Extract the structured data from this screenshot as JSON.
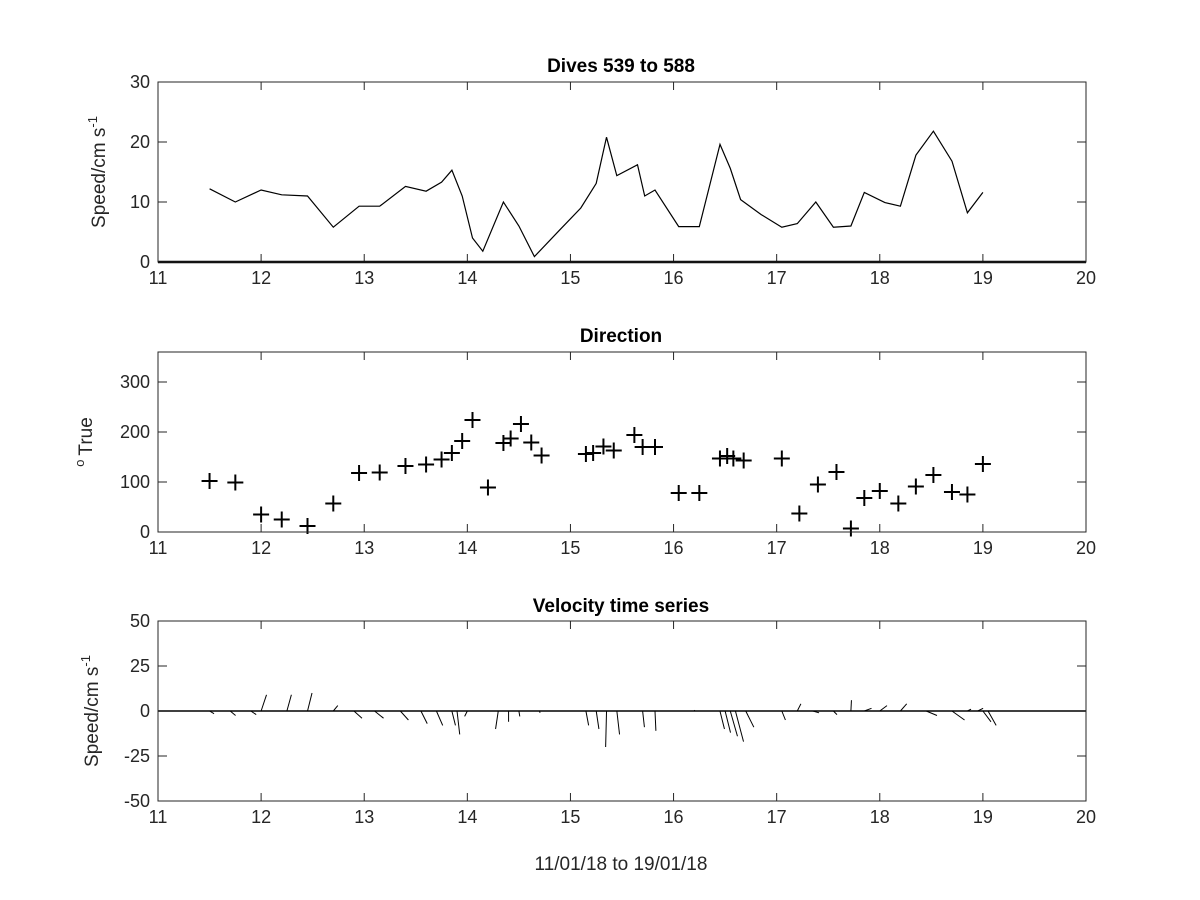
{
  "chart_data": [
    {
      "type": "line",
      "title": "Dives 539 to 588",
      "xlabel": "",
      "ylabel": "Speed/cm s",
      "ylabel_sup": "-1",
      "xlim": [
        11,
        20
      ],
      "ylim": [
        0,
        30
      ],
      "xticks": [
        11,
        12,
        13,
        14,
        15,
        16,
        17,
        18,
        19,
        20
      ],
      "yticks": [
        0,
        10,
        20,
        30
      ],
      "grid": false,
      "series": [
        {
          "x": [
            11.5,
            11.75,
            12.0,
            12.2,
            12.45,
            12.7,
            12.95,
            13.15,
            13.4,
            13.6,
            13.75,
            13.85,
            13.95,
            14.05,
            14.15,
            14.35,
            14.5,
            14.65,
            14.9,
            15.1,
            15.25,
            15.35,
            15.45,
            15.65,
            15.72,
            15.82,
            16.05,
            16.25,
            16.45,
            16.55,
            16.65,
            16.85,
            17.05,
            17.2,
            17.38,
            17.55,
            17.72,
            17.85,
            18.05,
            18.2,
            18.35,
            18.52,
            18.7,
            18.85,
            19.0
          ],
          "values": [
            12.2,
            10.0,
            12.0,
            11.2,
            11.0,
            5.8,
            9.3,
            9.3,
            12.6,
            11.8,
            13.3,
            15.3,
            11.0,
            4.0,
            1.8,
            10.0,
            6.0,
            0.9,
            5.4,
            9.0,
            13.1,
            20.8,
            14.4,
            16.2,
            11.0,
            12.0,
            5.9,
            5.9,
            19.6,
            15.6,
            10.4,
            7.9,
            5.8,
            6.4,
            10.0,
            5.8,
            6.0,
            11.6,
            9.9,
            9.3,
            17.8,
            21.8,
            16.8,
            8.2,
            11.6
          ]
        }
      ]
    },
    {
      "type": "scatter",
      "title": "Direction",
      "xlabel": "",
      "ylabel": "True",
      "ylabel_sup": "o",
      "xlim": [
        11,
        20
      ],
      "ylim": [
        0,
        360
      ],
      "xticks": [
        11,
        12,
        13,
        14,
        15,
        16,
        17,
        18,
        19,
        20
      ],
      "yticks": [
        0,
        100,
        200,
        300
      ],
      "ytick_labels": [
        "0",
        "100",
        "200",
        "300"
      ],
      "grid": false,
      "marker": "+",
      "series": [
        {
          "x": [
            11.5,
            11.75,
            12.0,
            12.2,
            12.45,
            12.7,
            12.95,
            13.15,
            13.4,
            13.6,
            13.75,
            13.85,
            13.95,
            14.05,
            14.2,
            14.35,
            14.42,
            14.52,
            14.62,
            14.72,
            15.15,
            15.22,
            15.32,
            15.42,
            15.62,
            15.7,
            15.82,
            16.05,
            16.25,
            16.45,
            16.52,
            16.58,
            16.68,
            17.05,
            17.22,
            17.4,
            17.58,
            17.72,
            17.85,
            18.0,
            18.18,
            18.35,
            18.52,
            18.7,
            18.85,
            19.0
          ],
          "values": [
            102,
            99,
            35,
            25,
            12,
            57,
            118,
            119,
            132,
            135,
            145,
            158,
            182,
            224,
            89,
            178,
            187,
            216,
            179,
            153,
            156,
            158,
            171,
            163,
            194,
            170,
            170,
            78,
            78,
            147,
            152,
            147,
            143,
            147,
            37,
            95,
            120,
            7,
            68,
            82,
            57,
            91,
            114,
            80,
            75,
            136
          ]
        }
      ]
    },
    {
      "type": "quiver",
      "title": "Velocity time series",
      "xlabel": "11/01/18 to 19/01/18",
      "ylabel": "Speed/cm s",
      "ylabel_sup": "-1",
      "xlim": [
        11,
        20
      ],
      "ylim": [
        -50,
        50
      ],
      "xticks": [
        11,
        12,
        13,
        14,
        15,
        16,
        17,
        18,
        19,
        20
      ],
      "yticks": [
        -50,
        -25,
        0,
        25,
        50
      ],
      "grid": false,
      "baseline": 0,
      "vectors": [
        {
          "t": 11.5,
          "u": 2.5,
          "v": -1.5
        },
        {
          "t": 11.7,
          "u": 3.0,
          "v": -2.5
        },
        {
          "t": 11.9,
          "u": 3.0,
          "v": -2.0
        },
        {
          "t": 12.0,
          "u": 3.0,
          "v": 9.0
        },
        {
          "t": 12.25,
          "u": 2.5,
          "v": 9.0
        },
        {
          "t": 12.45,
          "u": 2.5,
          "v": 10.0
        },
        {
          "t": 12.7,
          "u": 2.5,
          "v": 3.0
        },
        {
          "t": 12.9,
          "u": 4.5,
          "v": -4.0
        },
        {
          "t": 13.1,
          "u": 5.0,
          "v": -4.0
        },
        {
          "t": 13.35,
          "u": 4.5,
          "v": -5.0
        },
        {
          "t": 13.55,
          "u": 3.5,
          "v": -7.0
        },
        {
          "t": 13.7,
          "u": 3.5,
          "v": -8.0
        },
        {
          "t": 13.85,
          "u": 2.0,
          "v": -8.0
        },
        {
          "t": 13.9,
          "u": 1.5,
          "v": -13.0
        },
        {
          "t": 14.0,
          "u": -1.5,
          "v": -3.0
        },
        {
          "t": 14.3,
          "u": -1.5,
          "v": -10.0
        },
        {
          "t": 14.4,
          "u": 0.0,
          "v": -6.0
        },
        {
          "t": 14.5,
          "u": 0.5,
          "v": -3.0
        },
        {
          "t": 14.7,
          "u": 0.3,
          "v": -1.0
        },
        {
          "t": 15.15,
          "u": 1.5,
          "v": -8.0
        },
        {
          "t": 15.25,
          "u": 1.5,
          "v": -10.0
        },
        {
          "t": 15.35,
          "u": -0.5,
          "v": -20.0
        },
        {
          "t": 15.45,
          "u": 1.5,
          "v": -13.0
        },
        {
          "t": 15.7,
          "u": 1.0,
          "v": -9.0
        },
        {
          "t": 15.82,
          "u": 0.5,
          "v": -11.0
        },
        {
          "t": 16.2,
          "u": 0.3,
          "v": 0.5
        },
        {
          "t": 16.45,
          "u": 2.5,
          "v": -10.0
        },
        {
          "t": 16.5,
          "u": 3.0,
          "v": -12.0
        },
        {
          "t": 16.55,
          "u": 4.0,
          "v": -14.0
        },
        {
          "t": 16.6,
          "u": 4.5,
          "v": -17.0
        },
        {
          "t": 16.7,
          "u": 4.5,
          "v": -9.0
        },
        {
          "t": 17.05,
          "u": 2.0,
          "v": -5.0
        },
        {
          "t": 17.2,
          "u": 2.0,
          "v": 4.0
        },
        {
          "t": 17.35,
          "u": 3.5,
          "v": -1.0
        },
        {
          "t": 17.55,
          "u": 2.0,
          "v": -2.0
        },
        {
          "t": 17.72,
          "u": 0.3,
          "v": 6.0
        },
        {
          "t": 17.85,
          "u": 4.0,
          "v": 1.5
        },
        {
          "t": 18.0,
          "u": 4.0,
          "v": 3.0
        },
        {
          "t": 18.2,
          "u": 3.5,
          "v": 4.0
        },
        {
          "t": 18.45,
          "u": 6.0,
          "v": -2.5
        },
        {
          "t": 18.7,
          "u": 7.0,
          "v": -5.0
        },
        {
          "t": 18.85,
          "u": 2.0,
          "v": 1.0
        },
        {
          "t": 18.95,
          "u": 3.0,
          "v": 1.5
        },
        {
          "t": 19.0,
          "u": 4.5,
          "v": -6.0
        },
        {
          "t": 19.05,
          "u": 4.5,
          "v": -8.0
        }
      ]
    }
  ]
}
